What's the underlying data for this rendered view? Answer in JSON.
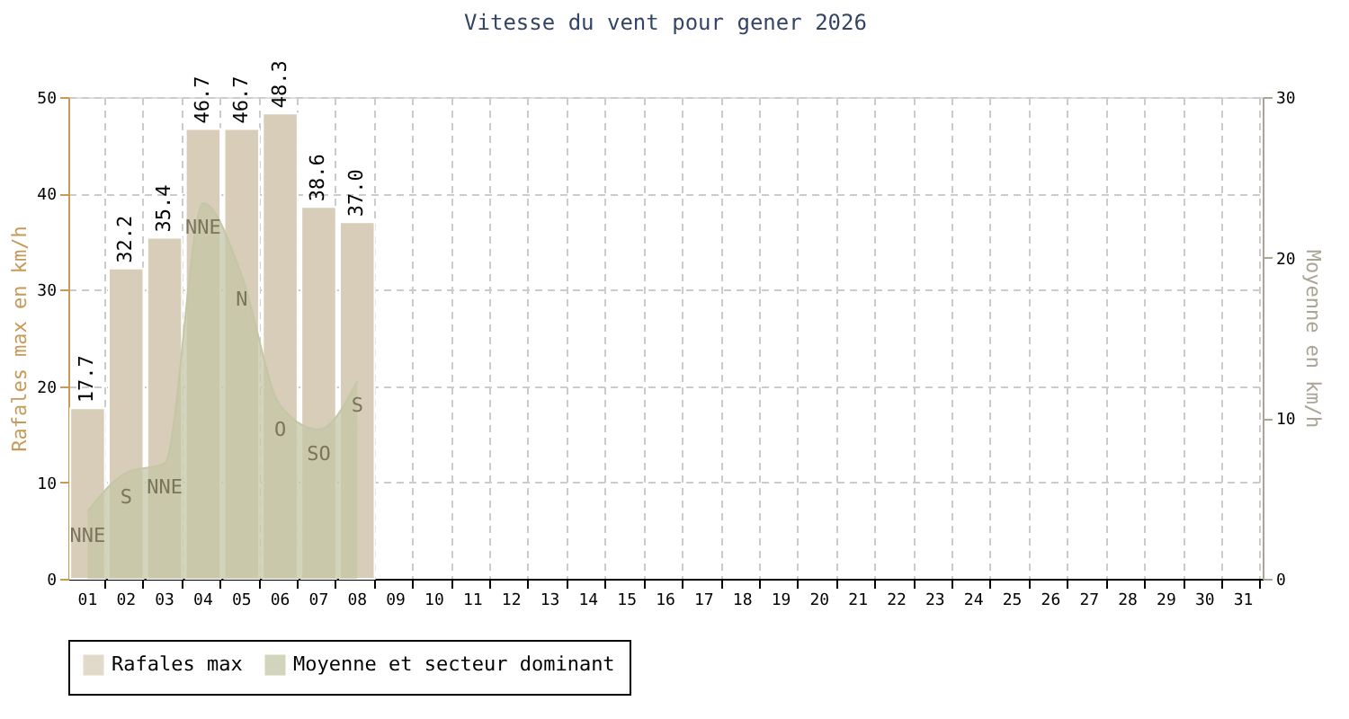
{
  "chart_data": {
    "type": "bar",
    "title": "Vitesse du vent pour gener 2026",
    "categories": [
      "01",
      "02",
      "03",
      "04",
      "05",
      "06",
      "07",
      "08",
      "09",
      "10",
      "11",
      "12",
      "13",
      "14",
      "15",
      "16",
      "17",
      "18",
      "19",
      "20",
      "21",
      "22",
      "23",
      "24",
      "25",
      "26",
      "27",
      "28",
      "29",
      "30",
      "31"
    ],
    "series": [
      {
        "name": "Rafales max",
        "color": "#d8cdb9",
        "values": [
          17.7,
          32.2,
          35.4,
          46.7,
          46.7,
          48.3,
          38.6,
          37.0,
          null,
          null,
          null,
          null,
          null,
          null,
          null,
          null,
          null,
          null,
          null,
          null,
          null,
          null,
          null,
          null,
          null,
          null,
          null,
          null,
          null,
          null,
          null
        ],
        "value_labels": [
          "17.7",
          "32.2",
          "35.4",
          "46.7",
          "46.7",
          "48.3",
          "38.6",
          "37.0",
          null,
          null,
          null,
          null,
          null,
          null,
          null,
          null,
          null,
          null,
          null,
          null,
          null,
          null,
          null,
          null,
          null,
          null,
          null,
          null,
          null,
          null,
          null
        ]
      },
      {
        "name": "Moyenne et secteur dominant",
        "type": "area",
        "axis": "y2",
        "color": "#c4c6a6",
        "values": [
          4.2,
          6.6,
          7.2,
          23.4,
          18.9,
          10.8,
          9.3,
          12.3,
          null,
          null,
          null,
          null,
          null,
          null,
          null,
          null,
          null,
          null,
          null,
          null,
          null,
          null,
          null,
          null,
          null,
          null,
          null,
          null,
          null,
          null,
          null
        ],
        "value_labels": [
          "NNE",
          "S",
          "NNE",
          "NNE",
          "N",
          "O",
          "SO",
          "S",
          null,
          null,
          null,
          null,
          null,
          null,
          null,
          null,
          null,
          null,
          null,
          null,
          null,
          null,
          null,
          null,
          null,
          null,
          null,
          null,
          null,
          null,
          null
        ]
      }
    ],
    "ylabel": "Rafales max en km/h",
    "y2label": "Moyenne en km/h",
    "ylim": [
      0,
      50
    ],
    "yticks": [
      0,
      10,
      20,
      30,
      40,
      50
    ],
    "y2lim": [
      0,
      30
    ],
    "y2ticks": [
      0,
      10,
      20,
      30
    ],
    "grid": true,
    "legend": "bottom"
  }
}
